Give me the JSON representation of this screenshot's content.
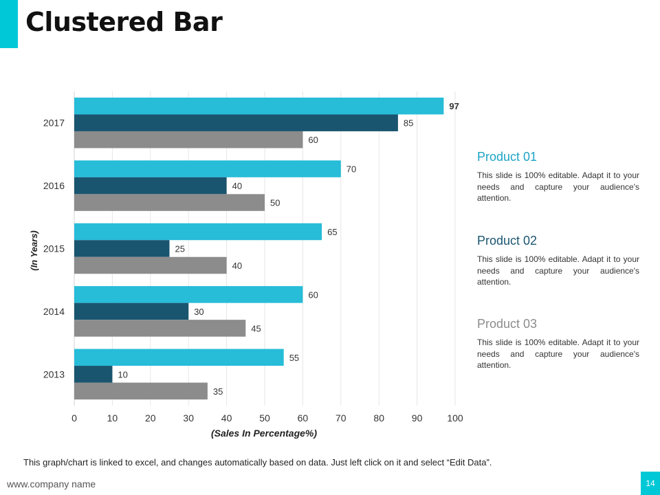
{
  "title": "Clustered Bar",
  "colors": {
    "accent": "#00C8D7",
    "product_01": "#27BCD8",
    "product_02": "#1A5570",
    "product_03": "#8C8C8C",
    "product_01_label": "#1CA3C5",
    "product_02_label": "#1A5570",
    "product_03_label": "#8C8C8C"
  },
  "chart_data": {
    "type": "bar",
    "orientation": "horizontal",
    "categories": [
      "2013",
      "2014",
      "2015",
      "2016",
      "2017"
    ],
    "series": [
      {
        "name": "Product 01",
        "values": [
          55,
          60,
          65,
          70,
          97
        ]
      },
      {
        "name": "Product 02",
        "values": [
          10,
          30,
          25,
          40,
          85
        ]
      },
      {
        "name": "Product 03",
        "values": [
          35,
          45,
          40,
          50,
          60
        ]
      }
    ],
    "xlabel": "(Sales In Percentage%)",
    "ylabel": "(In Years)",
    "xlim": [
      0,
      100
    ],
    "xticks": [
      0,
      10,
      20,
      30,
      40,
      50,
      60,
      70,
      80,
      90,
      100
    ],
    "grid": true
  },
  "legend": [
    {
      "name": "Product 01",
      "desc": "This slide is 100% editable. Adapt it to your needs and capture your audience's attention."
    },
    {
      "name": "Product 02",
      "desc": "This slide is 100% editable. Adapt it to your needs and capture your audience's attention."
    },
    {
      "name": "Product 03",
      "desc": "This slide is 100% editable. Adapt it to your needs and capture your audience's attention."
    }
  ],
  "footnote": "This graph/chart is linked to excel, and changes automatically based on data. Just left click on it and select “Edit Data”.",
  "website": "www.company name",
  "page_number": "14"
}
